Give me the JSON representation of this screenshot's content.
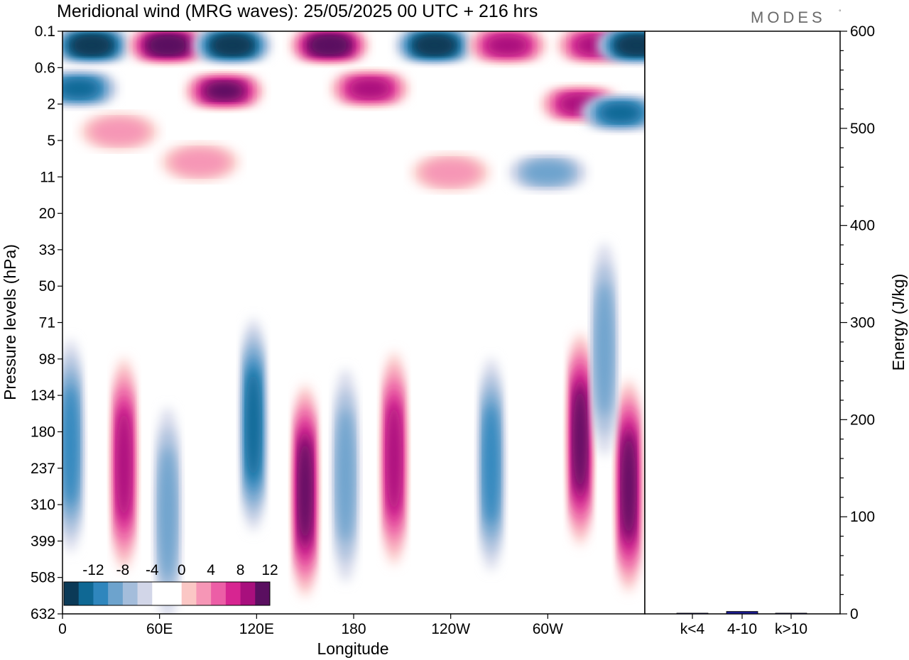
{
  "chart_data": [
    {
      "type": "heatmap",
      "title": "Meridional wind (MRG waves):  25/05/2025  00 UTC  + 216 hrs",
      "xlabel": "Longitude",
      "ylabel": "Pressure levels (hPa)",
      "x_ticks": [
        "0",
        "60E",
        "120E",
        "180",
        "120W",
        "60W"
      ],
      "x_range": [
        0,
        360
      ],
      "y_ticks": [
        "0.1",
        "0.6",
        "2",
        "5",
        "11",
        "20",
        "33",
        "50",
        "71",
        "98",
        "134",
        "180",
        "237",
        "310",
        "399",
        "508",
        "632"
      ],
      "colorbar": {
        "labels": [
          "-12",
          "-8",
          "-4",
          "0",
          "4",
          "8",
          "12"
        ],
        "colors": [
          "#0b3a57",
          "#0f6894",
          "#2f86bd",
          "#6da3cd",
          "#a4bddb",
          "#d2d6e8",
          "#ffffff",
          "#ffffff",
          "#fbc7c5",
          "#f696b6",
          "#ec5ea6",
          "#d72591",
          "#a80f7d",
          "#5a0f60"
        ]
      },
      "features": [
        {
          "lon": 18,
          "lev": 0.2,
          "v": -14
        },
        {
          "lon": 65,
          "lev": 0.2,
          "v": 14
        },
        {
          "lon": 105,
          "lev": 0.2,
          "v": -13
        },
        {
          "lon": 165,
          "lev": 0.2,
          "v": 14
        },
        {
          "lon": 230,
          "lev": 0.2,
          "v": -14
        },
        {
          "lon": 275,
          "lev": 0.2,
          "v": 10
        },
        {
          "lon": 330,
          "lev": 0.2,
          "v": 9
        },
        {
          "lon": 355,
          "lev": 0.2,
          "v": -14
        },
        {
          "lon": 10,
          "lev": 1.2,
          "v": -9
        },
        {
          "lon": 100,
          "lev": 1.3,
          "v": 12
        },
        {
          "lon": 190,
          "lev": 1.2,
          "v": 10
        },
        {
          "lon": 320,
          "lev": 2,
          "v": 9
        },
        {
          "lon": 345,
          "lev": 2.5,
          "v": -10
        },
        {
          "lon": 35,
          "lev": 4,
          "v": 3
        },
        {
          "lon": 85,
          "lev": 8,
          "v": 4
        },
        {
          "lon": 240,
          "lev": 10,
          "v": 3
        },
        {
          "lon": 300,
          "lev": 10,
          "v": -5
        },
        {
          "lon": 5,
          "lev": 200,
          "v": -8
        },
        {
          "lon": 38,
          "lev": 230,
          "v": 10
        },
        {
          "lon": 65,
          "lev": 330,
          "v": -5
        },
        {
          "lon": 118,
          "lev": 170,
          "v": -10
        },
        {
          "lon": 150,
          "lev": 280,
          "v": 12
        },
        {
          "lon": 175,
          "lev": 250,
          "v": -5
        },
        {
          "lon": 205,
          "lev": 220,
          "v": 10
        },
        {
          "lon": 265,
          "lev": 230,
          "v": -8
        },
        {
          "lon": 320,
          "lev": 190,
          "v": 11
        },
        {
          "lon": 350,
          "lev": 270,
          "v": 12
        },
        {
          "lon": 335,
          "lev": 90,
          "v": -5
        }
      ]
    },
    {
      "type": "bar",
      "ylabel": "Energy (J/kg)",
      "ylim": [
        0,
        600
      ],
      "y_ticks": [
        "0",
        "100",
        "200",
        "300",
        "400",
        "500",
        "600"
      ],
      "categories": [
        "k<4",
        "4-10",
        "k>10"
      ],
      "values": [
        0.3,
        2.5,
        0.3
      ],
      "bar_colors": [
        "#1a1a8a",
        "#1a1a8a",
        "#1a1a8a"
      ]
    }
  ],
  "logo": {
    "text": "MODES",
    "mark": "°"
  }
}
